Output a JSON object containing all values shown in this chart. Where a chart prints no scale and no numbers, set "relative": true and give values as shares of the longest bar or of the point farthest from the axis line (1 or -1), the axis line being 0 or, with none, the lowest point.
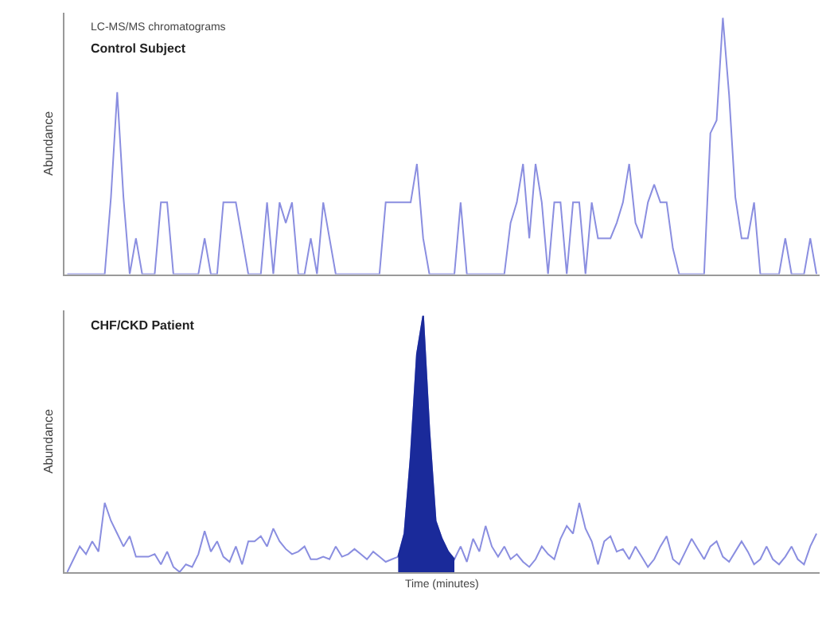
{
  "chart_data": [
    {
      "type": "line",
      "title": "Control Subject",
      "ylabel": "Abundance",
      "annotations": [
        "LC-MS/MS chromatograms"
      ],
      "relative": true,
      "tick_labels": false,
      "marker": "none",
      "line_style": "solid",
      "categories": [
        null,
        null,
        null,
        null,
        null,
        null,
        null,
        null,
        null,
        null,
        null,
        null,
        null,
        null,
        null,
        null,
        null,
        null,
        null,
        null,
        null,
        null,
        null,
        null,
        null,
        null,
        null,
        null,
        null,
        null,
        null,
        null,
        null,
        null,
        null,
        null,
        null,
        null,
        null,
        null,
        null,
        null,
        null,
        null,
        null,
        null,
        null,
        null,
        null,
        null,
        null,
        null,
        null,
        null,
        null,
        null,
        null,
        null,
        null,
        null,
        null,
        null,
        null,
        null,
        null,
        null,
        null,
        null,
        null,
        null,
        null,
        null,
        null,
        null,
        null,
        null,
        null,
        null,
        null,
        null,
        null,
        null,
        null,
        null,
        null,
        null,
        null,
        null,
        null,
        null,
        null,
        null,
        null,
        null,
        null,
        null,
        null,
        null,
        null,
        null,
        null,
        null,
        null,
        null,
        null,
        null,
        null,
        null,
        null,
        null,
        null,
        null,
        null,
        null,
        null,
        null,
        null,
        null,
        null,
        null,
        null
      ],
      "series": [
        {
          "color": "#8a8ee0",
          "values": [
            0,
            0,
            0,
            0,
            0,
            0,
            0,
            0.3,
            0.71,
            0.3,
            0,
            0.14,
            0,
            0,
            0,
            0.28,
            0.28,
            0,
            0,
            0,
            0,
            0,
            0.14,
            0,
            0,
            0.28,
            0.28,
            0.28,
            0.14,
            0,
            0,
            0,
            0.28,
            0,
            0.28,
            0.2,
            0.28,
            0,
            0,
            0.14,
            0,
            0.28,
            0.14,
            0,
            0,
            0,
            0,
            0,
            0,
            0,
            0,
            0.28,
            0.28,
            0.28,
            0.28,
            0.28,
            0.43,
            0.14,
            0,
            0,
            0,
            0,
            0,
            0.28,
            0,
            0,
            0,
            0,
            0,
            0,
            0,
            0.2,
            0.28,
            0.43,
            0.14,
            0.43,
            0.28,
            0,
            0.28,
            0.28,
            0,
            0.28,
            0.28,
            0,
            0.28,
            0.14,
            0.14,
            0.14,
            0.2,
            0.28,
            0.43,
            0.2,
            0.14,
            0.28,
            0.35,
            0.28,
            0.28,
            0.1,
            0,
            0,
            0,
            0,
            0,
            0.55,
            0.6,
            1.0,
            0.7,
            0.3,
            0.14,
            0.14,
            0.28,
            0,
            0,
            0,
            0,
            0.14,
            0,
            0,
            0,
            0.14,
            0
          ]
        }
      ]
    },
    {
      "type": "line",
      "title": "CHF/CKD Patient",
      "ylabel": "Abundance",
      "xlabel": "Time (minutes)",
      "relative": true,
      "tick_labels": false,
      "marker": "none",
      "line_style": "solid",
      "categories": [
        null,
        null,
        null,
        null,
        null,
        null,
        null,
        null,
        null,
        null,
        null,
        null,
        null,
        null,
        null,
        null,
        null,
        null,
        null,
        null,
        null,
        null,
        null,
        null,
        null,
        null,
        null,
        null,
        null,
        null,
        null,
        null,
        null,
        null,
        null,
        null,
        null,
        null,
        null,
        null,
        null,
        null,
        null,
        null,
        null,
        null,
        null,
        null,
        null,
        null,
        null,
        null,
        null,
        null,
        null,
        null,
        null,
        null,
        null,
        null,
        null,
        null,
        null,
        null,
        null,
        null,
        null,
        null,
        null,
        null,
        null,
        null,
        null,
        null,
        null,
        null,
        null,
        null,
        null,
        null,
        null,
        null,
        null,
        null,
        null,
        null,
        null,
        null,
        null,
        null,
        null,
        null,
        null,
        null,
        null,
        null,
        null,
        null,
        null,
        null,
        null,
        null,
        null,
        null,
        null,
        null,
        null,
        null,
        null,
        null,
        null,
        null,
        null,
        null,
        null,
        null,
        null,
        null,
        null,
        null,
        null
      ],
      "series": [
        {
          "color": "#8a8ee0",
          "values": [
            0,
            0.05,
            0.1,
            0.07,
            0.12,
            0.08,
            0.27,
            0.2,
            0.15,
            0.1,
            0.14,
            0.06,
            0.06,
            0.06,
            0.07,
            0.03,
            0.08,
            0.02,
            0,
            0.03,
            0.02,
            0.07,
            0.16,
            0.08,
            0.12,
            0.06,
            0.04,
            0.1,
            0.03,
            0.12,
            0.12,
            0.14,
            0.1,
            0.17,
            0.12,
            0.09,
            0.07,
            0.08,
            0.1,
            0.05,
            0.05,
            0.06,
            0.05,
            0.1,
            0.06,
            0.07,
            0.09,
            0.07,
            0.05,
            0.08,
            0.06,
            0.04,
            0.05,
            0.06,
            0.15,
            0.45,
            0.85,
            1.0,
            0.55,
            0.2,
            0.13,
            0.08,
            0.05,
            0.1,
            0.04,
            0.13,
            0.08,
            0.18,
            0.1,
            0.06,
            0.1,
            0.05,
            0.07,
            0.04,
            0.02,
            0.05,
            0.1,
            0.07,
            0.05,
            0.13,
            0.18,
            0.15,
            0.27,
            0.17,
            0.12,
            0.03,
            0.12,
            0.14,
            0.08,
            0.09,
            0.05,
            0.1,
            0.06,
            0.02,
            0.05,
            0.1,
            0.14,
            0.05,
            0.03,
            0.08,
            0.13,
            0.09,
            0.05,
            0.1,
            0.12,
            0.06,
            0.04,
            0.08,
            0.12,
            0.08,
            0.03,
            0.05,
            0.1,
            0.05,
            0.03,
            0.06,
            0.1,
            0.05,
            0.03,
            0.1,
            0.15
          ]
        },
        {
          "type": "area",
          "color": "#1a2a9a",
          "values": [
            null,
            null,
            null,
            null,
            null,
            null,
            null,
            null,
            null,
            null,
            null,
            null,
            null,
            null,
            null,
            null,
            null,
            null,
            null,
            null,
            null,
            null,
            null,
            null,
            null,
            null,
            null,
            null,
            null,
            null,
            null,
            null,
            null,
            null,
            null,
            null,
            null,
            null,
            null,
            null,
            null,
            null,
            null,
            null,
            null,
            null,
            null,
            null,
            null,
            null,
            null,
            null,
            null,
            0.06,
            0.15,
            0.45,
            0.85,
            1.0,
            0.55,
            0.2,
            0.13,
            0.08,
            0.05,
            null,
            null,
            null,
            null,
            null,
            null,
            null,
            null,
            null,
            null,
            null,
            null,
            null,
            null,
            null,
            null,
            null,
            null,
            null,
            null,
            null,
            null,
            null,
            null,
            null,
            null,
            null,
            null,
            null,
            null,
            null,
            null,
            null,
            null,
            null,
            null,
            null,
            null,
            null,
            null,
            null,
            null,
            null,
            null,
            null,
            null,
            null,
            null,
            null,
            null,
            null,
            null,
            null,
            null,
            null,
            null,
            null,
            null
          ]
        }
      ]
    }
  ]
}
